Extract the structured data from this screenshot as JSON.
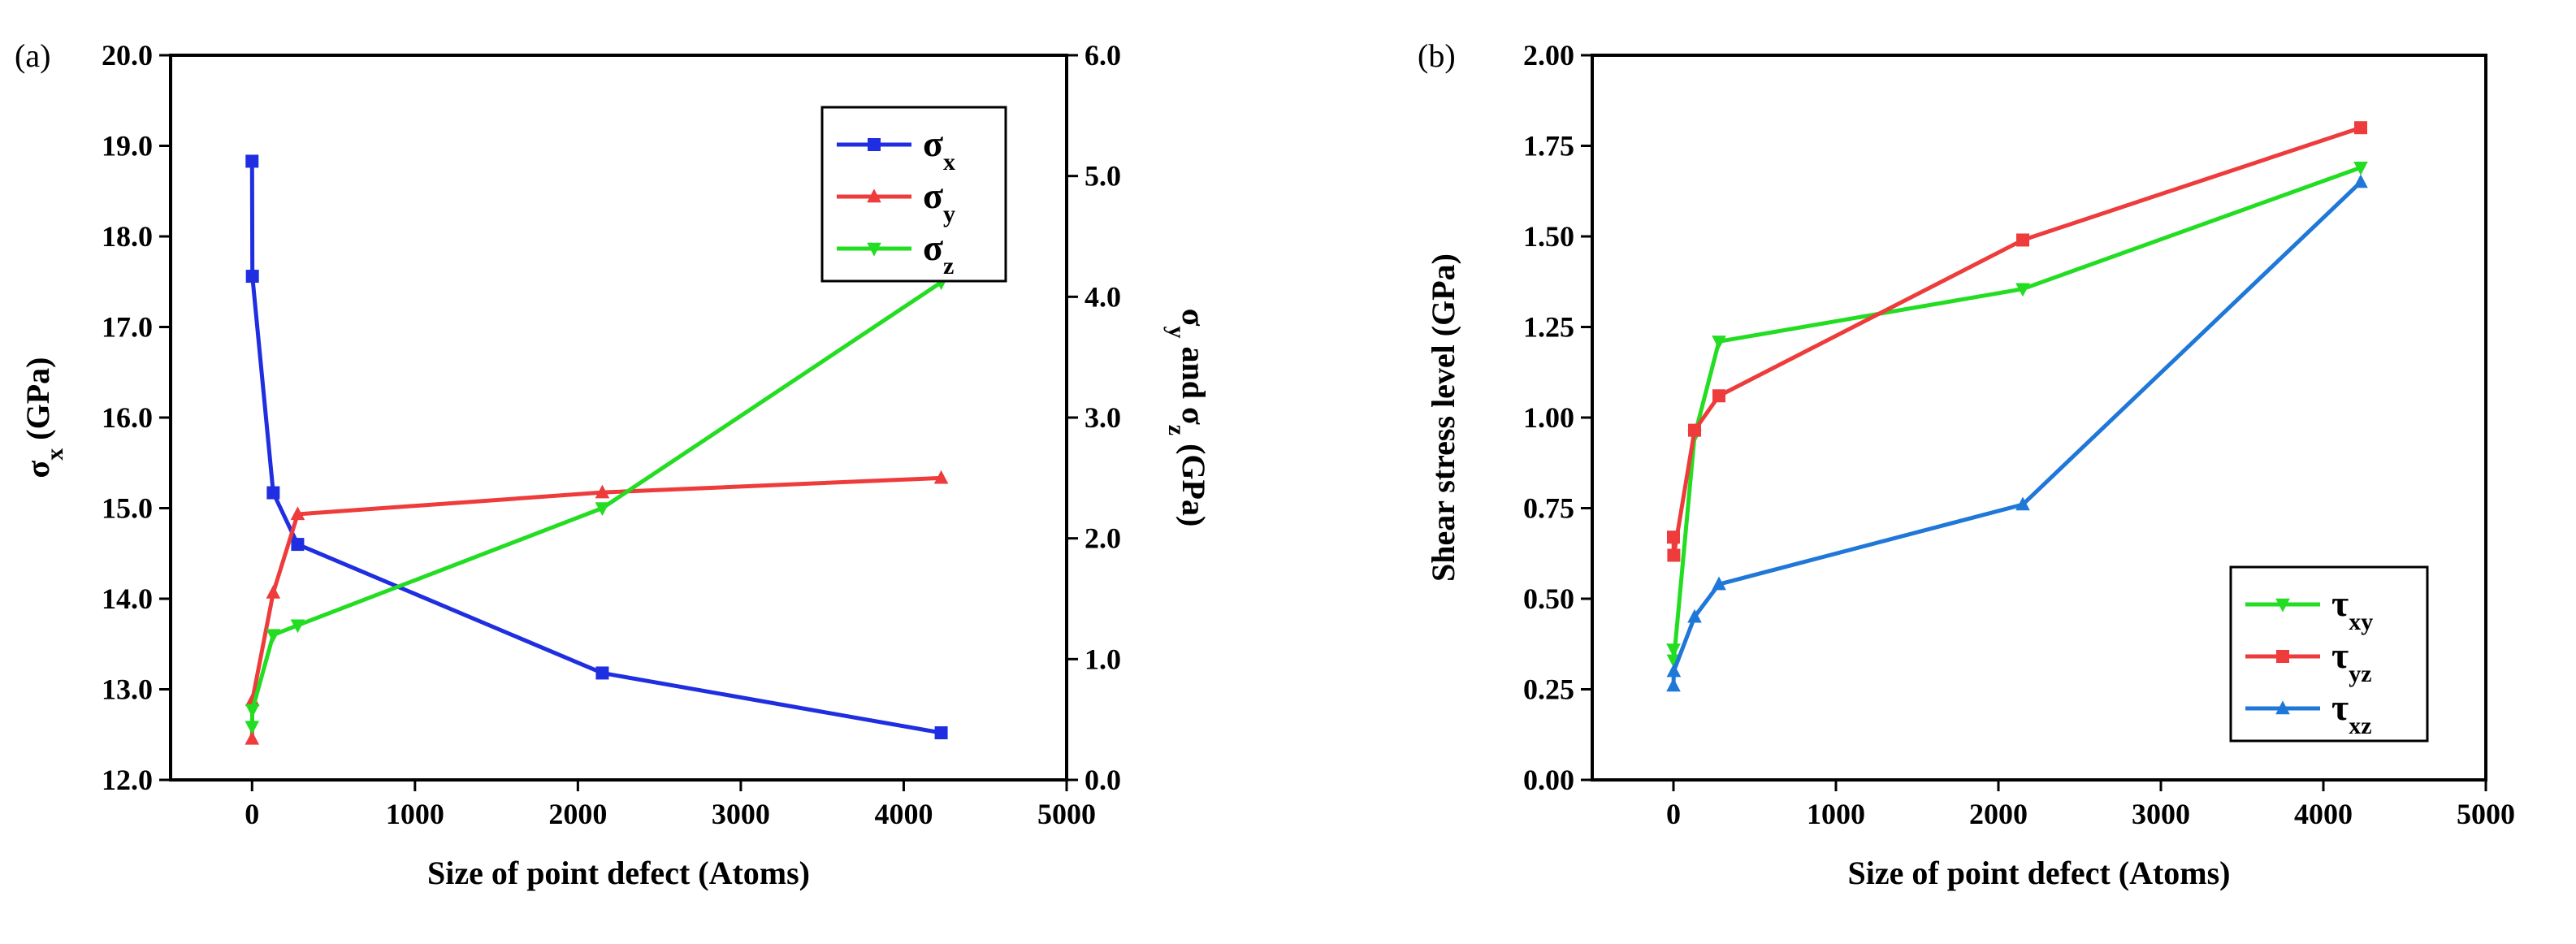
{
  "chart_data": [
    {
      "type": "line",
      "panel_label": "(a)",
      "xlabel": "Size of point defect (Atoms)",
      "ylabel": {
        "main": "σ",
        "sub": "x",
        "suffix": " (GPa)"
      },
      "y2label": {
        "a": "σ",
        "a_sub": "y",
        "mid": " and ",
        "b": "σ",
        "b_sub": "z",
        "suffix": " (GPa)"
      },
      "xlim": [
        -500,
        5000
      ],
      "xticks": [
        "0",
        "1000",
        "2000",
        "3000",
        "4000",
        "5000"
      ],
      "xtick_values": [
        0,
        1000,
        2000,
        3000,
        4000,
        5000
      ],
      "ylim": [
        12.0,
        20.0
      ],
      "yticks": [
        "12.0",
        "13.0",
        "14.0",
        "15.0",
        "16.0",
        "17.0",
        "18.0",
        "19.0",
        "20.0"
      ],
      "ytick_values": [
        12,
        13,
        14,
        15,
        16,
        17,
        18,
        19,
        20
      ],
      "y2lim": [
        0.0,
        6.0
      ],
      "y2ticks": [
        "0.0",
        "1.0",
        "2.0",
        "3.0",
        "4.0",
        "5.0",
        "6.0"
      ],
      "y2tick_values": [
        0,
        1,
        2,
        3,
        4,
        5,
        6
      ],
      "legend_position": "top-right",
      "series": [
        {
          "name": "σ",
          "name_sub": "x",
          "axis": "left",
          "color": "#1f2ee0",
          "marker": "square",
          "x": [
            0,
            2,
            130,
            280,
            2150,
            4230
          ],
          "y": [
            18.83,
            17.56,
            15.17,
            14.6,
            13.18,
            12.52
          ]
        },
        {
          "name": "σ",
          "name_sub": "y",
          "axis": "right",
          "color": "#ee3b3b",
          "marker": "triangle-up",
          "x": [
            0,
            2,
            130,
            280,
            2150,
            4230
          ],
          "y": [
            0.34,
            0.66,
            1.55,
            2.2,
            2.38,
            2.5
          ]
        },
        {
          "name": "σ",
          "name_sub": "z",
          "axis": "right",
          "color": "#22dd22",
          "marker": "triangle-down",
          "x": [
            0,
            2,
            130,
            280,
            2150,
            4230
          ],
          "y": [
            0.44,
            0.58,
            1.2,
            1.28,
            2.25,
            4.12
          ]
        }
      ]
    },
    {
      "type": "line",
      "panel_label": "(b)",
      "xlabel": "Size of point defect (Atoms)",
      "ylabel": {
        "main": "Shear stress level (GPa)"
      },
      "xlim": [
        -500,
        5000
      ],
      "xticks": [
        "0",
        "1000",
        "2000",
        "3000",
        "4000",
        "5000"
      ],
      "xtick_values": [
        0,
        1000,
        2000,
        3000,
        4000,
        5000
      ],
      "ylim": [
        0.0,
        2.0
      ],
      "yticks": [
        "0.00",
        "0.25",
        "0.50",
        "0.75",
        "1.00",
        "1.25",
        "1.50",
        "1.75",
        "2.00"
      ],
      "ytick_values": [
        0,
        0.25,
        0.5,
        0.75,
        1.0,
        1.25,
        1.5,
        1.75,
        2.0
      ],
      "legend_position": "bottom-right",
      "series": [
        {
          "name": "τ",
          "name_sub": "xy",
          "axis": "left",
          "color": "#22dd22",
          "marker": "triangle-down",
          "x": [
            0,
            2,
            130,
            280,
            2150,
            4230
          ],
          "y": [
            0.36,
            0.33,
            0.95,
            1.21,
            1.355,
            1.69
          ]
        },
        {
          "name": "τ",
          "name_sub": "yz",
          "axis": "left",
          "color": "#ee3b3b",
          "marker": "square",
          "x": [
            0,
            2,
            130,
            280,
            2150,
            4230
          ],
          "y": [
            0.67,
            0.62,
            0.965,
            1.06,
            1.49,
            1.8
          ]
        },
        {
          "name": "τ",
          "name_sub": "xz",
          "axis": "left",
          "color": "#1f78d8",
          "marker": "triangle-up",
          "x": [
            0,
            2,
            130,
            280,
            2150,
            4230
          ],
          "y": [
            0.26,
            0.3,
            0.45,
            0.54,
            0.76,
            1.65
          ]
        }
      ]
    }
  ]
}
